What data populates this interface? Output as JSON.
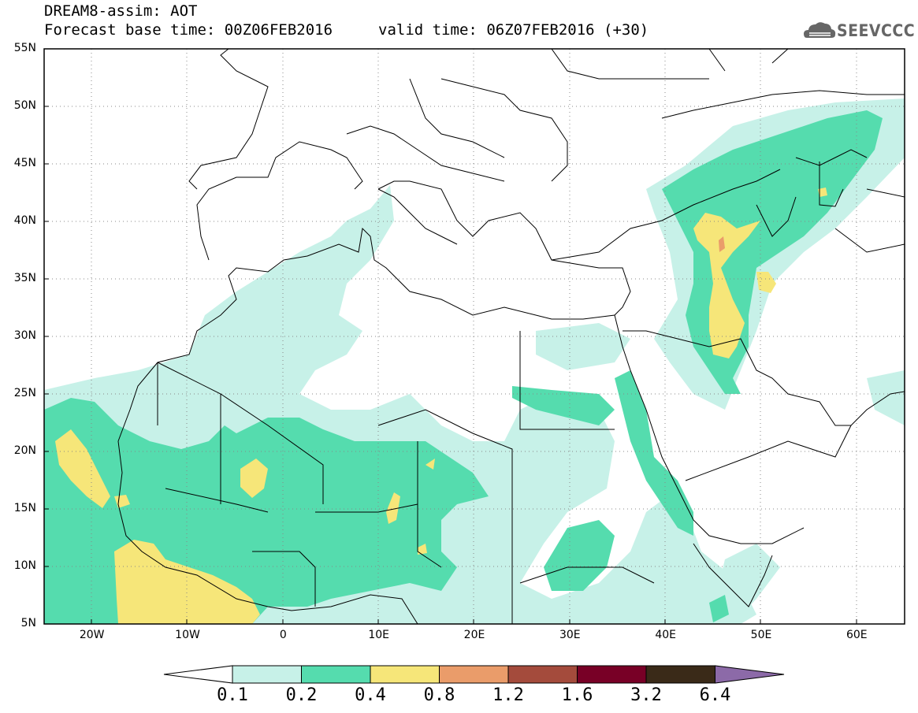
{
  "title": {
    "line1": "DREAM8-assim: AOT",
    "base_time": "Forecast base time: 00Z06FEB2016",
    "valid_time": "valid time: 06Z07FEB2016 (+30)"
  },
  "logo": {
    "text": "SEEVCCC",
    "icon": "cloud-icon"
  },
  "map": {
    "lon_range": [
      -25,
      65
    ],
    "lat_range": [
      5,
      55
    ],
    "lat_ticks": [
      {
        "value": 55,
        "label": "55N"
      },
      {
        "value": 50,
        "label": "50N"
      },
      {
        "value": 45,
        "label": "45N"
      },
      {
        "value": 40,
        "label": "40N"
      },
      {
        "value": 35,
        "label": "35N"
      },
      {
        "value": 30,
        "label": "30N"
      },
      {
        "value": 25,
        "label": "25N"
      },
      {
        "value": 20,
        "label": "20N"
      },
      {
        "value": 15,
        "label": "15N"
      },
      {
        "value": 10,
        "label": "10N"
      },
      {
        "value": 5,
        "label": "5N"
      }
    ],
    "lon_ticks": [
      {
        "value": -20,
        "label": "20W"
      },
      {
        "value": -10,
        "label": "10W"
      },
      {
        "value": 0,
        "label": "0"
      },
      {
        "value": 10,
        "label": "10E"
      },
      {
        "value": 20,
        "label": "20E"
      },
      {
        "value": 30,
        "label": "30E"
      },
      {
        "value": 40,
        "label": "40E"
      },
      {
        "value": 50,
        "label": "50E"
      },
      {
        "value": 60,
        "label": "60E"
      }
    ],
    "gridlines": "dotted"
  },
  "colorbar": {
    "levels": [
      "0.1",
      "0.2",
      "0.4",
      "0.8",
      "1.2",
      "1.6",
      "3.2",
      "6.4"
    ],
    "colors": [
      "#ffffff",
      "#c7f1e8",
      "#55dcae",
      "#f6e679",
      "#ea9c6a",
      "#a44b3c",
      "#780026",
      "#3a2a18",
      "#8c6aa8"
    ]
  }
}
